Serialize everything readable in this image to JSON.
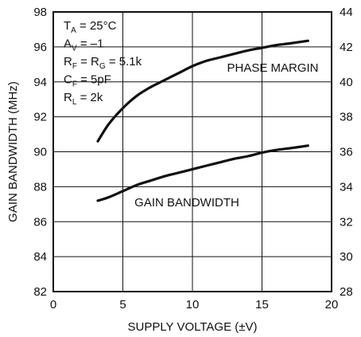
{
  "chart_data": {
    "type": "line",
    "xlabel": "SUPPLY VOLTAGE (±V)",
    "ylabel": "GAIN BANDWIDTH (MHz)",
    "xlim": [
      0,
      20
    ],
    "ylim": [
      82,
      98
    ],
    "y2lim": [
      28,
      44
    ],
    "grid": true,
    "x_ticks": [
      0,
      5,
      10,
      15,
      20
    ],
    "y_ticks": [
      82,
      84,
      86,
      88,
      90,
      92,
      94,
      96,
      98
    ],
    "y2_ticks": [
      28,
      30,
      32,
      34,
      36,
      38,
      40,
      42,
      44
    ],
    "conditions": [
      {
        "main": "T",
        "sub": "A",
        "rest": " = 25°C"
      },
      {
        "main": "A",
        "sub": "V",
        "rest": " = –1"
      },
      {
        "main": "R",
        "sub": "F",
        "rest": " = R",
        "sub2": "G",
        "rest2": " = 5.1k"
      },
      {
        "main": "C",
        "sub": "F",
        "rest": " = 5pF"
      },
      {
        "main": "R",
        "sub": "L",
        "rest": " = 2k"
      }
    ],
    "series": [
      {
        "name": "PHASE MARGIN",
        "axis": "right",
        "x": [
          3.2,
          4,
          5,
          6,
          7,
          8,
          9,
          10,
          11,
          12,
          13,
          14,
          15,
          16,
          17,
          18.3
        ],
        "y": [
          36.6,
          37.6,
          38.5,
          39.2,
          39.7,
          40.1,
          40.5,
          40.9,
          41.2,
          41.4,
          41.6,
          41.8,
          41.95,
          42.1,
          42.2,
          42.35
        ]
      },
      {
        "name": "GAIN BANDWIDTH",
        "axis": "left",
        "x": [
          3.2,
          4,
          5,
          6,
          7,
          8,
          9,
          10,
          11,
          12,
          13,
          14,
          15,
          16,
          17,
          18.3
        ],
        "y": [
          87.2,
          87.4,
          87.75,
          88.1,
          88.35,
          88.6,
          88.8,
          89.0,
          89.2,
          89.4,
          89.6,
          89.75,
          89.95,
          90.1,
          90.2,
          90.35
        ]
      }
    ]
  }
}
